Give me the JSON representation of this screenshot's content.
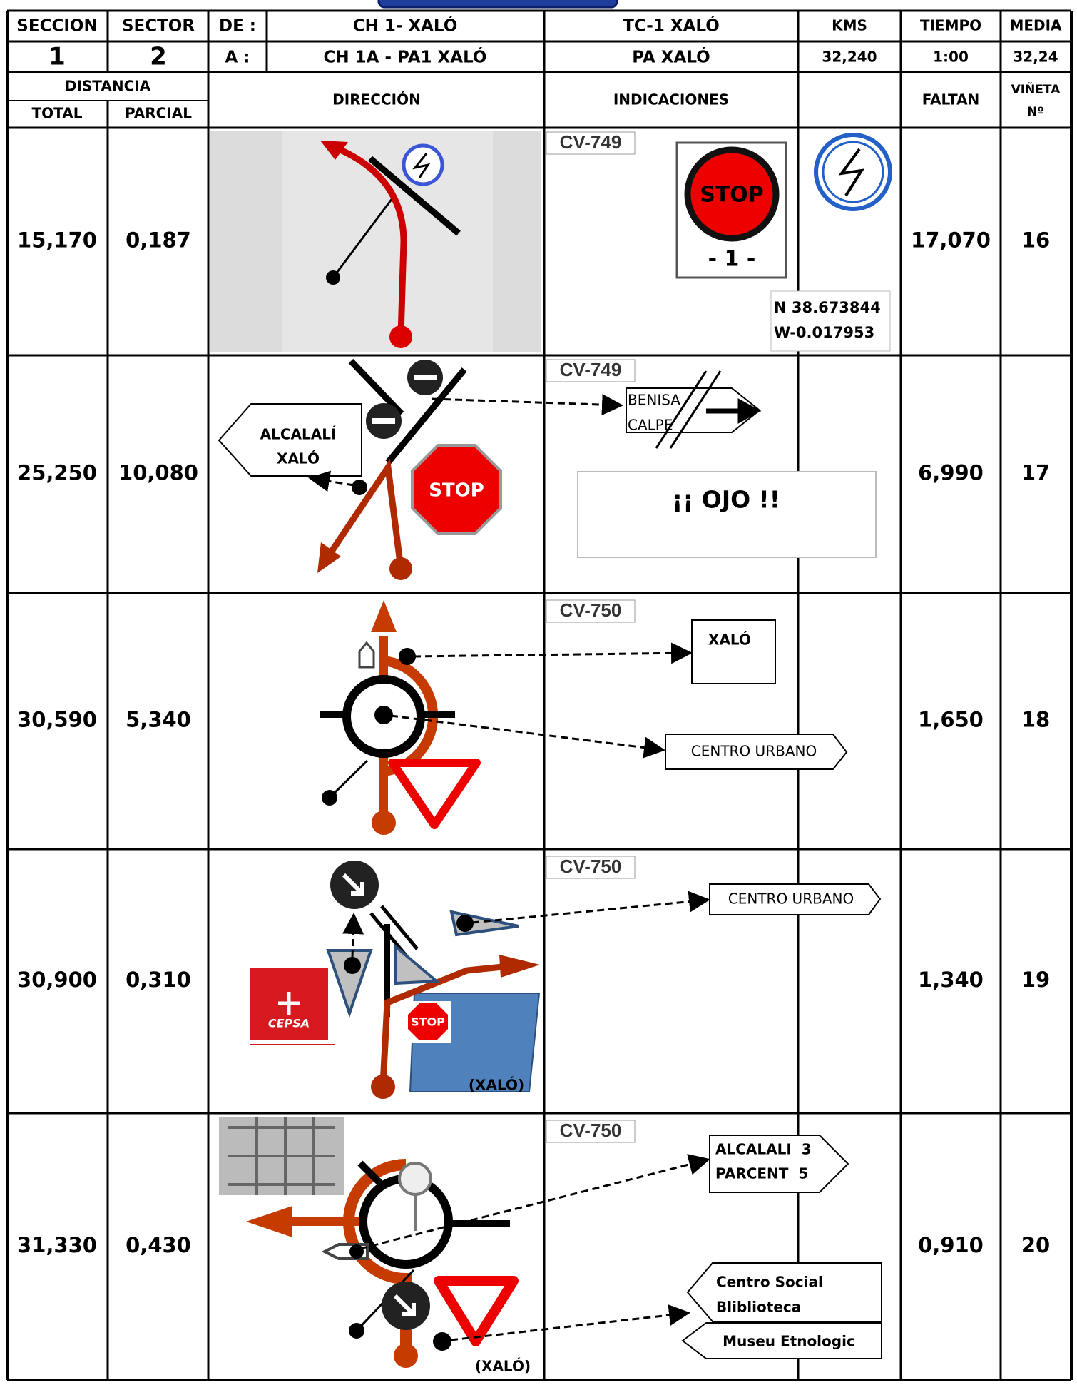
{
  "header": {
    "seccion_label": "SECCION",
    "sector_label": "SECTOR",
    "de_label": "DE :",
    "de": "CH 1- XALÓ",
    "tc": "TC-1 XALÓ",
    "kms_label": "KMS",
    "tiempo_label": "TIEMPO",
    "media_label": "MEDIA",
    "seccion": "1",
    "sector": "2",
    "a_label": "A :",
    "a": "CH 1A - PA1 XALÓ",
    "pa": "PA XALÓ",
    "kms": "32,240",
    "tiempo": "1:00",
    "media": "32,24"
  },
  "columns": {
    "distancia": "DISTANCIA",
    "total": "TOTAL",
    "parcial": "PARCIAL",
    "direccion": "DIRECCIÓN",
    "indicaciones": "INDICACIONES",
    "faltan": "FALTAN",
    "vineta": [
      "VIÑETA",
      "Nº"
    ]
  },
  "rows": [
    {
      "total": "15,170",
      "parcial": "0,187",
      "faltan": "17,070",
      "vineta": "16",
      "road": "CV-749",
      "indications": [
        "STOP",
        "- 1 -",
        "N 38.673844",
        "W-0.017953"
      ]
    },
    {
      "total": "25,250",
      "parcial": "10,080",
      "faltan": "6,990",
      "vineta": "17",
      "road": "CV-749",
      "direction": [
        "ALCALALÍ",
        "XALÓ",
        "STOP"
      ],
      "indications": [
        "BENISA",
        "CALPE",
        "¡¡ OJO !!"
      ]
    },
    {
      "total": "30,590",
      "parcial": "5,340",
      "faltan": "1,650",
      "vineta": "18",
      "road": "CV-750",
      "indications": [
        "XALÓ",
        "CENTRO URBANO"
      ]
    },
    {
      "total": "30,900",
      "parcial": "0,310",
      "faltan": "1,340",
      "vineta": "19",
      "road": "CV-750",
      "direction": [
        "CEPSA",
        "STOP",
        "(XALÓ)"
      ],
      "indications": [
        "CENTRO URBANO"
      ]
    },
    {
      "total": "31,330",
      "parcial": "0,430",
      "faltan": "0,910",
      "vineta": "20",
      "road": "CV-750",
      "direction": [
        "(XALÓ)"
      ],
      "indications": [
        "ALCALALI  3",
        "PARCENT  5",
        "Centro Social",
        "Bliblioteca",
        "Museu Etnologic"
      ]
    }
  ]
}
